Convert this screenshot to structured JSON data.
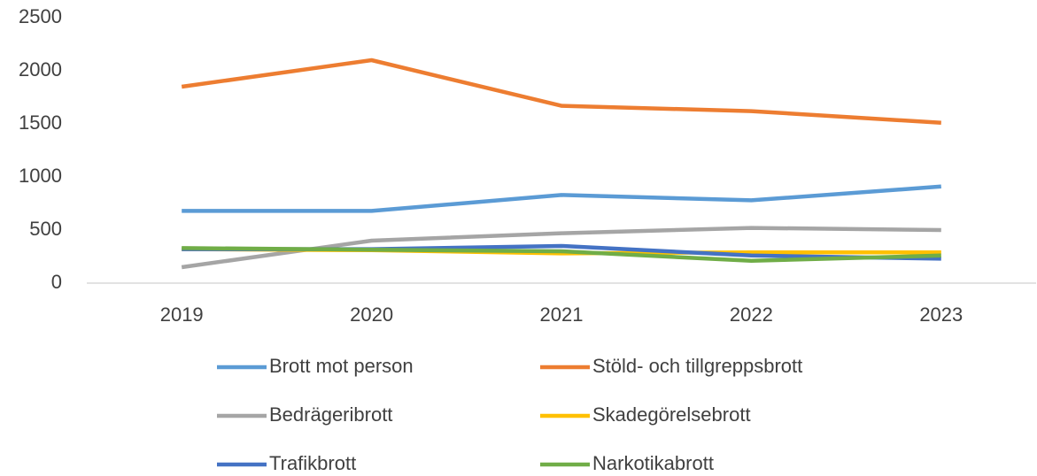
{
  "chart_data": {
    "type": "line",
    "categories": [
      "2019",
      "2020",
      "2021",
      "2022",
      "2023"
    ],
    "series": [
      {
        "name": "Brott mot person",
        "color": "#5b9bd5",
        "values": [
          680,
          680,
          830,
          780,
          910
        ]
      },
      {
        "name": "Stöld- och tillgreppsbrott",
        "color": "#ed7d31",
        "values": [
          1850,
          2100,
          1670,
          1620,
          1510
        ]
      },
      {
        "name": "Bedrägeribrott",
        "color": "#a5a5a5",
        "values": [
          150,
          400,
          470,
          520,
          500
        ]
      },
      {
        "name": "Skadegörelsebrott",
        "color": "#ffc000",
        "values": [
          320,
          310,
          280,
          290,
          290
        ]
      },
      {
        "name": "Trafikbrott",
        "color": "#4472c4",
        "values": [
          320,
          320,
          350,
          260,
          230
        ]
      },
      {
        "name": "Narkotikabrott",
        "color": "#70ad47",
        "values": [
          330,
          315,
          300,
          210,
          260
        ]
      }
    ],
    "ylim": [
      0,
      2500
    ],
    "yticks": [
      0,
      500,
      1000,
      1500,
      2000,
      2500
    ],
    "grid": false
  }
}
